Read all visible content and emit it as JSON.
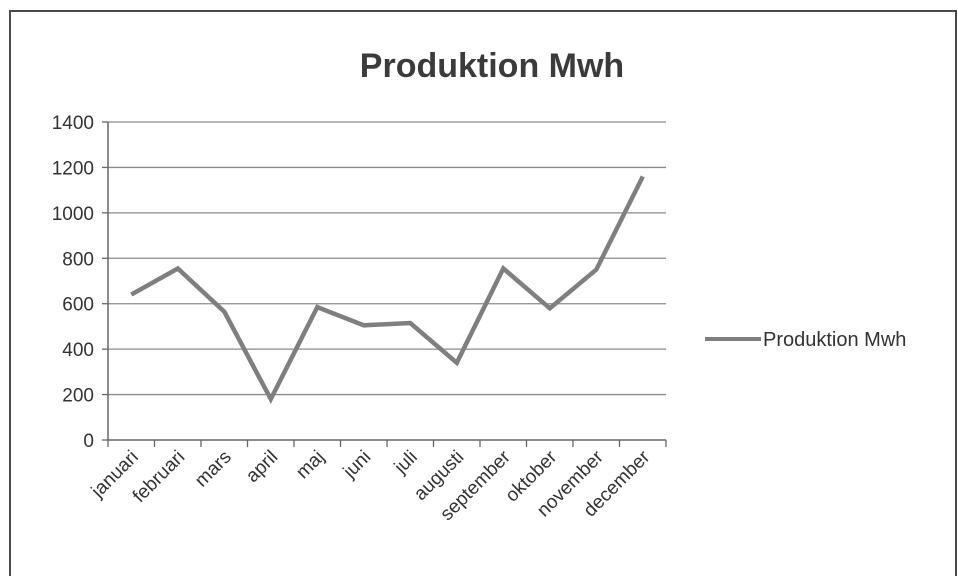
{
  "chart_data": {
    "type": "line",
    "title": "Produktion Mwh",
    "xlabel": "",
    "ylabel": "",
    "categories": [
      "januari",
      "februari",
      "mars",
      "april",
      "maj",
      "juni",
      "juli",
      "augusti",
      "september",
      "oktober",
      "november",
      "december"
    ],
    "series": [
      {
        "name": "Produktion Mwh",
        "values": [
          640,
          755,
          565,
          180,
          585,
          505,
          515,
          340,
          755,
          580,
          750,
          1160
        ],
        "color": "#7f7f7f"
      }
    ],
    "ylim": [
      0,
      1400
    ],
    "yticks": [
      0,
      200,
      400,
      600,
      800,
      1000,
      1200,
      1400
    ],
    "grid": true,
    "legend": "right"
  }
}
